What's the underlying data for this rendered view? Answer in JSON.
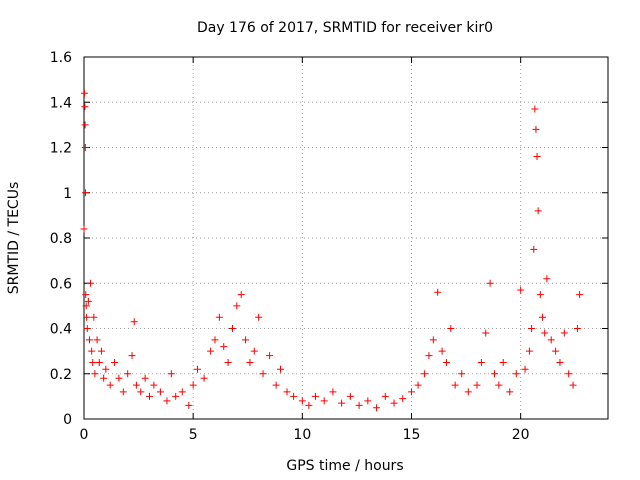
{
  "chart_data": {
    "type": "scatter",
    "title": "Day 176 of 2017, SRMTID for receiver kir0",
    "xlabel": "GPS time / hours",
    "ylabel": "SRMTID / TECUs",
    "xlim": [
      0,
      24
    ],
    "ylim": [
      0,
      1.6
    ],
    "x_ticks": [
      0,
      5,
      10,
      15,
      20
    ],
    "x_tick_labels": [
      "0",
      "5",
      "10",
      "15",
      "20"
    ],
    "y_ticks": [
      0,
      0.2,
      0.4,
      0.6,
      0.8,
      1,
      1.2,
      1.4,
      1.6
    ],
    "y_tick_labels": [
      "0",
      "0.2",
      "0.4",
      "0.6",
      "0.8",
      "1",
      "1.2",
      "1.4",
      "1.6"
    ],
    "grid": true,
    "marker": "+",
    "color": "#ff0000",
    "series": [
      {
        "name": "SRMTID",
        "x": [
          0.0,
          0.02,
          0.04,
          0.05,
          0.06,
          0.07,
          0.08,
          0.1,
          0.12,
          0.15,
          0.2,
          0.25,
          0.3,
          0.35,
          0.4,
          0.45,
          0.5,
          0.6,
          0.7,
          0.8,
          0.9,
          1.0,
          1.2,
          1.4,
          1.6,
          1.8,
          2.0,
          2.2,
          2.3,
          2.4,
          2.6,
          2.8,
          3.0,
          3.2,
          3.5,
          3.8,
          4.0,
          4.2,
          4.5,
          4.8,
          5.0,
          5.2,
          5.5,
          5.8,
          6.0,
          6.2,
          6.4,
          6.6,
          6.8,
          7.0,
          7.2,
          7.4,
          7.6,
          7.8,
          8.0,
          8.2,
          8.5,
          8.8,
          9.0,
          9.3,
          9.6,
          10.0,
          10.3,
          10.6,
          11.0,
          11.4,
          11.8,
          12.2,
          12.6,
          13.0,
          13.4,
          13.8,
          14.2,
          14.6,
          15.0,
          15.3,
          15.6,
          15.8,
          16.0,
          16.2,
          16.4,
          16.6,
          16.8,
          17.0,
          17.3,
          17.6,
          18.0,
          18.2,
          18.4,
          18.6,
          18.8,
          19.0,
          19.2,
          19.5,
          19.8,
          20.0,
          20.2,
          20.4,
          20.5,
          20.6,
          20.65,
          20.7,
          20.75,
          20.8,
          20.9,
          21.0,
          21.1,
          21.2,
          21.4,
          21.6,
          21.8,
          22.0,
          22.2,
          22.4,
          22.6,
          22.7
        ],
        "y": [
          0.84,
          1.44,
          1.38,
          1.3,
          1.2,
          1.0,
          0.55,
          0.5,
          0.45,
          0.4,
          0.52,
          0.35,
          0.6,
          0.3,
          0.25,
          0.45,
          0.2,
          0.35,
          0.25,
          0.3,
          0.18,
          0.22,
          0.15,
          0.25,
          0.18,
          0.12,
          0.2,
          0.28,
          0.43,
          0.15,
          0.12,
          0.18,
          0.1,
          0.15,
          0.12,
          0.08,
          0.2,
          0.1,
          0.12,
          0.06,
          0.15,
          0.22,
          0.18,
          0.3,
          0.35,
          0.45,
          0.32,
          0.25,
          0.4,
          0.5,
          0.55,
          0.35,
          0.25,
          0.3,
          0.45,
          0.2,
          0.28,
          0.15,
          0.22,
          0.12,
          0.1,
          0.08,
          0.06,
          0.1,
          0.08,
          0.12,
          0.07,
          0.1,
          0.06,
          0.08,
          0.05,
          0.1,
          0.07,
          0.09,
          0.12,
          0.15,
          0.2,
          0.28,
          0.35,
          0.56,
          0.3,
          0.25,
          0.4,
          0.15,
          0.2,
          0.12,
          0.15,
          0.25,
          0.38,
          0.6,
          0.2,
          0.15,
          0.25,
          0.12,
          0.2,
          0.57,
          0.22,
          0.3,
          0.4,
          0.75,
          1.37,
          1.28,
          1.16,
          0.92,
          0.55,
          0.45,
          0.38,
          0.62,
          0.35,
          0.3,
          0.25,
          0.38,
          0.2,
          0.15,
          0.4,
          0.55
        ]
      }
    ]
  }
}
